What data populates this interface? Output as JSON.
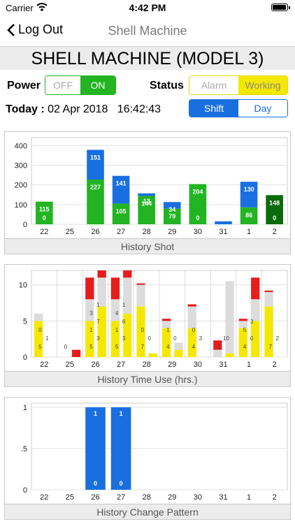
{
  "status_bar": {
    "carrier": "Carrier",
    "time": "4:42 PM"
  },
  "nav": {
    "back_label": "Log Out",
    "title": "Shell Machine"
  },
  "machine_title": "SHELL MACHINE (MODEL 3)",
  "power": {
    "label": "Power",
    "off": "OFF",
    "on": "ON",
    "selected": "ON"
  },
  "status": {
    "label": "Status",
    "alarm": "Alarm",
    "working": "Working",
    "selected": "Working"
  },
  "period": {
    "shift": "Shift",
    "day": "Day",
    "selected": "Shift"
  },
  "today": {
    "label": "Today :",
    "date": "02 Apr 2018",
    "time": "16:42:43"
  },
  "colors": {
    "green": "#22b422",
    "dark_green": "#0b6b0b",
    "blue": "#1a6fe0",
    "gray": "#dcdcdc",
    "yellow": "#f5e800",
    "red": "#e81c1c"
  },
  "chart_data": [
    {
      "type": "bar",
      "title": "History Shot",
      "categories": [
        "22",
        "25",
        "26",
        "27",
        "28",
        "29",
        "30",
        "31",
        "1",
        "2"
      ],
      "yticks": [
        "400",
        "300",
        "200",
        "100",
        "0"
      ],
      "ylim": [
        0,
        440
      ],
      "series": [
        {
          "values": [
            115,
            0,
            227,
            105,
            144,
            79,
            204,
            0,
            86,
            148
          ]
        },
        {
          "values": [
            0,
            0,
            151,
            141,
            13,
            34,
            0,
            15,
            130,
            0
          ]
        }
      ],
      "labels": [
        [
          "115",
          "0"
        ],
        [],
        [
          "151",
          "227"
        ],
        [
          "141",
          "105"
        ],
        [
          "13",
          "144"
        ],
        [
          "34",
          "79"
        ],
        [
          "204",
          "0"
        ],
        [],
        [
          "130",
          "86"
        ],
        [
          "148",
          "0"
        ]
      ]
    },
    {
      "type": "bar",
      "title": "History Time Use (hrs.)",
      "categories": [
        "22",
        "25",
        "26",
        "27",
        "28",
        "29",
        "30",
        "31",
        "1",
        "2"
      ],
      "yticks": [
        "10",
        "5",
        "0"
      ],
      "ylim": [
        0,
        12
      ],
      "stacks": [
        [
          [
            5,
            1,
            0,
            0
          ],
          [
            0,
            0,
            0,
            0
          ]
        ],
        [
          [
            0,
            0,
            0,
            0
          ],
          [
            0,
            0,
            0,
            1
          ]
        ],
        [
          [
            5,
            3,
            0,
            3
          ],
          [
            7,
            3,
            1,
            1
          ]
        ],
        [
          [
            5,
            3,
            0,
            3
          ],
          [
            6,
            4,
            1,
            1
          ]
        ],
        [
          [
            7,
            3,
            0,
            0.2
          ],
          [
            0.5,
            0,
            0,
            0
          ]
        ],
        [
          [
            4,
            1,
            0,
            0.3
          ],
          [
            1,
            1,
            0,
            0
          ]
        ],
        [
          [
            4,
            3,
            0,
            0.3
          ],
          [
            0,
            0,
            0,
            0
          ]
        ],
        [
          [
            0,
            1,
            0,
            1.3
          ],
          [
            0.5,
            10,
            0,
            0
          ]
        ],
        [
          [
            4,
            1,
            0,
            0.3
          ],
          [
            5,
            3,
            0,
            3
          ]
        ],
        [
          [
            7,
            2,
            0,
            0.2
          ],
          [
            0,
            0,
            0,
            0
          ]
        ]
      ],
      "labels": [
        [
          "5",
          "1",
          "0"
        ],
        [
          "0"
        ],
        [
          "5",
          "3",
          "1",
          "7",
          "3",
          "1"
        ],
        [
          "5",
          "3",
          "1",
          "6",
          "4",
          "1"
        ],
        [
          "7",
          "0",
          "0"
        ],
        [
          "4",
          "0",
          "1"
        ],
        [
          "4",
          "3",
          "0"
        ],
        [
          "1",
          "10"
        ],
        [
          "4",
          "0",
          "5",
          "3"
        ],
        [
          "7",
          "2"
        ]
      ]
    },
    {
      "type": "bar",
      "title": "History Change Pattern",
      "categories": [
        "22",
        "25",
        "26",
        "27",
        "28",
        "29",
        "30",
        "31",
        "1",
        "2"
      ],
      "yticks": [
        "1",
        ".5",
        "0"
      ],
      "ylim": [
        0,
        1.05
      ],
      "values": [
        0,
        0,
        1,
        1,
        0,
        0,
        0,
        0,
        0,
        0
      ],
      "labels": [
        [],
        [],
        [
          "1",
          "0"
        ],
        [
          "1",
          "0"
        ],
        [],
        [],
        [],
        [],
        [],
        []
      ]
    }
  ]
}
